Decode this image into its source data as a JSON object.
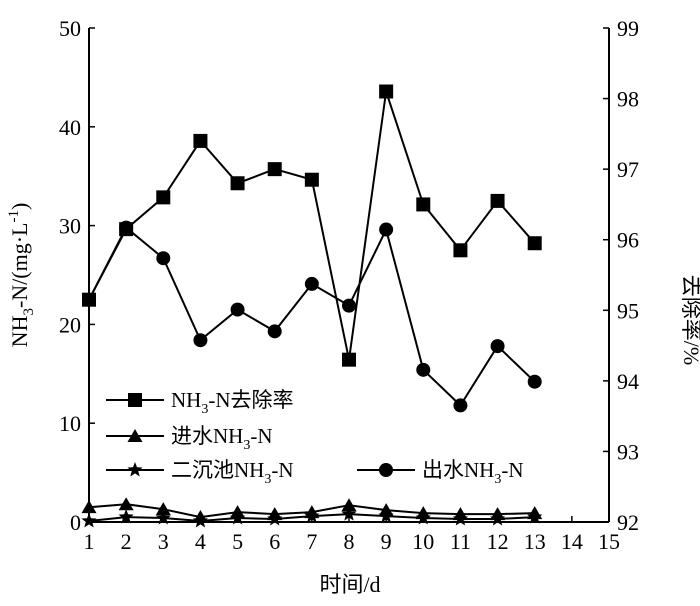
{
  "chart_data": {
    "type": "line",
    "xlabel": "时间/d",
    "ylabel_left": {
      "main": "NH",
      "sub3": "3",
      "mid": "-N/(mg·L",
      "sup": "-1",
      "end": ")"
    },
    "ylabel_right": "去除率/%",
    "x_ticks": [
      "1",
      "2",
      "3",
      "4",
      "5",
      "6",
      "7",
      "8",
      "9",
      "10",
      "11",
      "12",
      "13",
      "14",
      "15"
    ],
    "y_left_ticks": [
      "0",
      "10",
      "20",
      "30",
      "40",
      "50"
    ],
    "y_right_ticks": [
      "92",
      "93",
      "94",
      "95",
      "96",
      "97",
      "98",
      "99"
    ],
    "xlim": [
      1,
      15
    ],
    "ylim_left": [
      0,
      50
    ],
    "ylim_right": [
      92,
      99
    ],
    "grid": false,
    "legend_position": "bottom-left",
    "legend": [
      {
        "pre": "NH",
        "sub": "3",
        "post": "-N去除率"
      },
      {
        "pre": "进水NH",
        "sub": "3",
        "post": "-N"
      },
      {
        "pre": "二沉池NH",
        "sub": "3",
        "post": "-N"
      },
      {
        "pre": "出水NH",
        "sub": "3",
        "post": "-N"
      }
    ],
    "series": [
      {
        "name": "NH3-N去除率",
        "axis": "right",
        "marker": "square",
        "x": [
          1,
          2,
          3,
          4,
          5,
          6,
          7,
          8,
          9,
          10,
          11,
          12,
          13
        ],
        "values": [
          95.15,
          96.15,
          96.6,
          97.4,
          96.8,
          97.0,
          96.85,
          94.3,
          98.1,
          96.5,
          95.85,
          96.55,
          95.95
        ]
      },
      {
        "name": "进水NH3-N",
        "axis": "left",
        "marker": "triangle",
        "x": [
          1,
          2,
          3,
          4,
          5,
          6,
          7,
          8,
          9,
          10,
          11,
          12,
          13
        ],
        "values": [
          1.5,
          1.8,
          1.3,
          0.5,
          1.0,
          0.8,
          1.0,
          1.7,
          1.2,
          0.9,
          0.8,
          0.8,
          0.9
        ]
      },
      {
        "name": "二沉池NH3-N",
        "axis": "left",
        "marker": "star",
        "x": [
          1,
          2,
          3,
          4,
          5,
          6,
          7,
          8,
          9,
          10,
          11,
          12,
          13
        ],
        "values": [
          0.1,
          0.5,
          0.4,
          0.1,
          0.4,
          0.3,
          0.6,
          0.8,
          0.6,
          0.4,
          0.3,
          0.3,
          0.5
        ]
      },
      {
        "name": "出水NH3-N",
        "axis": "left",
        "marker": "circle",
        "x": [
          1,
          2,
          3,
          4,
          5,
          6,
          7,
          8,
          9,
          10,
          11,
          12,
          13
        ],
        "values": [
          22.5,
          29.8,
          26.7,
          18.4,
          21.5,
          19.3,
          24.1,
          21.9,
          29.6,
          15.4,
          11.8,
          17.8,
          14.2
        ]
      }
    ]
  }
}
